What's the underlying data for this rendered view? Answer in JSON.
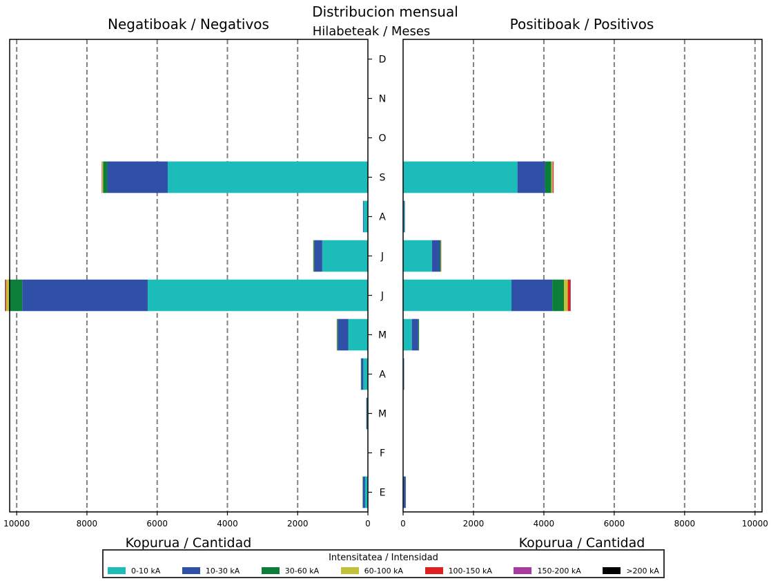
{
  "main_title": "Distribucion mensual",
  "chart_data": {
    "type": "bar",
    "orientation": "horizontal",
    "stacked": true,
    "y_axis_label": "Hilabeteak / Meses",
    "categories": [
      "E",
      "F",
      "M",
      "A",
      "M",
      "J",
      "J",
      "A",
      "S",
      "O",
      "N",
      "D"
    ],
    "intensity_classes": [
      "0-10 kA",
      "10-30 kA",
      "30-60 kA",
      "60-100 kA",
      "100-150 kA",
      "150-200 kA",
      ">200 kA"
    ],
    "colors": [
      "#1cbdb8",
      "#3050a8",
      "#0d7d3a",
      "#c2c23a",
      "#e02020",
      "#a83aa0",
      "#000000"
    ],
    "legend_title": "Intensitatea / Intensidad",
    "legend_position": "bottom-center",
    "grid": "vertical dashed",
    "panels": [
      {
        "title": "Negatiboak / Negativos",
        "xlabel": "Kopurua / Cantidad",
        "direction": "right-to-left",
        "xlim": [
          0,
          10200
        ],
        "xticks": [
          10000,
          8000,
          6000,
          4000,
          2000,
          0
        ],
        "series": [
          {
            "name": "0-10 kA",
            "values": [
              80,
              0,
              20,
              130,
              560,
              6270,
              1300,
              120,
              5700,
              0,
              0,
              0
            ]
          },
          {
            "name": "10-30 kA",
            "values": [
              60,
              0,
              20,
              60,
              300,
              3570,
              230,
              20,
              1720,
              0,
              0,
              0
            ]
          },
          {
            "name": "30-60 kA",
            "values": [
              10,
              0,
              5,
              10,
              20,
              380,
              20,
              0,
              120,
              0,
              0,
              0
            ]
          },
          {
            "name": "60-100 kA",
            "values": [
              0,
              0,
              0,
              0,
              10,
              80,
              10,
              0,
              30,
              0,
              0,
              0
            ]
          },
          {
            "name": "100-150 kA",
            "values": [
              0,
              0,
              0,
              0,
              0,
              20,
              0,
              0,
              10,
              0,
              0,
              0
            ]
          },
          {
            "name": "150-200 kA",
            "values": [
              0,
              0,
              0,
              0,
              0,
              10,
              0,
              0,
              0,
              0,
              0,
              0
            ]
          },
          {
            "name": ">200 kA",
            "values": [
              0,
              0,
              0,
              0,
              0,
              5,
              0,
              0,
              0,
              0,
              0,
              0
            ]
          }
        ]
      },
      {
        "title": "Positiboak / Positivos",
        "xlabel": "Kopurua / Cantidad",
        "direction": "left-to-right",
        "xlim": [
          0,
          10200
        ],
        "xticks": [
          0,
          2000,
          4000,
          6000,
          8000,
          10000
        ],
        "series": [
          {
            "name": "0-10 kA",
            "values": [
              20,
              0,
              0,
              20,
              250,
              3080,
              820,
              30,
              3250,
              0,
              0,
              0
            ]
          },
          {
            "name": "10-30 kA",
            "values": [
              40,
              0,
              0,
              10,
              180,
              1160,
              220,
              20,
              780,
              0,
              0,
              0
            ]
          },
          {
            "name": "30-60 kA",
            "values": [
              10,
              0,
              0,
              0,
              20,
              330,
              30,
              0,
              180,
              0,
              0,
              0
            ]
          },
          {
            "name": "60-100 kA",
            "values": [
              0,
              0,
              0,
              0,
              5,
              110,
              10,
              0,
              40,
              0,
              0,
              0
            ]
          },
          {
            "name": "100-150 kA",
            "values": [
              0,
              0,
              0,
              0,
              0,
              70,
              5,
              0,
              20,
              0,
              0,
              0
            ]
          },
          {
            "name": "150-200 kA",
            "values": [
              10,
              0,
              0,
              0,
              0,
              10,
              0,
              0,
              10,
              0,
              0,
              0
            ]
          },
          {
            "name": ">200 kA",
            "values": [
              0,
              0,
              0,
              0,
              0,
              5,
              0,
              0,
              0,
              0,
              0,
              0
            ]
          }
        ]
      }
    ]
  }
}
